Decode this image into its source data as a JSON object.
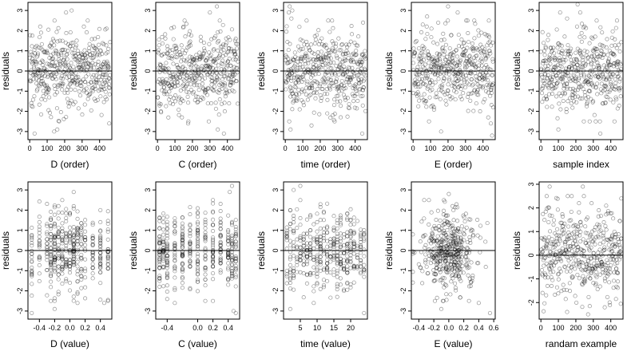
{
  "figure": {
    "background": "#ffffff",
    "point_color": "#000000"
  },
  "chart_data": [
    {
      "type": "scatter",
      "xlabel": "D (order)",
      "ylabel": "residuals",
      "xlim": [
        -10,
        470
      ],
      "ylim": [
        -3.4,
        3.4
      ],
      "xticks": [
        0,
        100,
        200,
        300,
        400
      ],
      "yticks": [
        -3,
        -2,
        -1,
        0,
        1,
        2,
        3
      ],
      "hline": 0,
      "x_pattern": "order",
      "n": 450,
      "grid": false,
      "x": [
        28,
        60,
        65,
        140,
        158,
        208,
        230,
        240,
        310,
        440,
        455
      ],
      "y": [
        -3.1,
        2.2,
        1.9,
        -3.0,
        -2.9,
        2.9,
        -1.6,
        3.0,
        2.2,
        2.1,
        -2.6
      ]
    },
    {
      "type": "scatter",
      "xlabel": "C (order)",
      "ylabel": "residuals",
      "xlim": [
        -10,
        470
      ],
      "ylim": [
        -3.4,
        3.4
      ],
      "xticks": [
        0,
        100,
        200,
        300,
        400
      ],
      "yticks": [
        -3,
        -2,
        -1,
        0,
        1,
        2,
        3
      ],
      "hline": 0,
      "x_pattern": "order",
      "n": 450,
      "grid": false,
      "x": [
        20,
        140,
        175,
        300,
        340,
        345,
        380,
        385
      ],
      "y": [
        -2.0,
        -2.3,
        -2.6,
        2.9,
        3.2,
        -2.9,
        -3.1,
        -2.0
      ]
    },
    {
      "type": "scatter",
      "xlabel": "time (order)",
      "ylabel": "residuals",
      "xlim": [
        -10,
        470
      ],
      "ylim": [
        -3.4,
        3.4
      ],
      "xticks": [
        0,
        100,
        200,
        300,
        400
      ],
      "yticks": [
        -3,
        -2,
        -1,
        0,
        1,
        2,
        3
      ],
      "hline": 0,
      "x_pattern": "order",
      "n": 450,
      "grid": false,
      "x": [
        20,
        25,
        30,
        35,
        40,
        150,
        240,
        440,
        445
      ],
      "y": [
        2.9,
        3.2,
        -2.9,
        2.6,
        3.0,
        -2.7,
        -2.1,
        -3.1,
        2.4
      ]
    },
    {
      "type": "scatter",
      "xlabel": "E (order)",
      "ylabel": "residuals",
      "xlim": [
        -10,
        470
      ],
      "ylim": [
        -3.4,
        3.4
      ],
      "xticks": [
        0,
        100,
        200,
        300,
        400
      ],
      "yticks": [
        -3,
        -2,
        -1,
        0,
        1,
        2,
        3
      ],
      "hline": 0,
      "x_pattern": "order",
      "n": 450,
      "grid": false,
      "x": [
        80,
        105,
        160,
        200,
        255,
        350,
        430,
        445,
        452
      ],
      "y": [
        2.7,
        2.1,
        -3.0,
        3.2,
        2.9,
        2.5,
        -2.3,
        -2.6,
        -3.2
      ]
    },
    {
      "type": "scatter",
      "xlabel": "sample index",
      "ylabel": "residuals",
      "xlim": [
        -10,
        470
      ],
      "ylim": [
        -3.4,
        3.4
      ],
      "xticks": [
        0,
        100,
        200,
        300,
        400
      ],
      "yticks": [
        -3,
        -2,
        -1,
        0,
        1,
        2,
        3
      ],
      "hline": 0,
      "x_pattern": "order",
      "n": 450,
      "grid": false,
      "x": [
        100,
        110,
        150,
        210,
        225,
        250,
        340
      ],
      "y": [
        -2.9,
        2.9,
        2.6,
        3.3,
        2.9,
        2.2,
        -3.1
      ]
    },
    {
      "type": "scatter",
      "xlabel": "D (value)",
      "ylabel": "residuals",
      "xlim": [
        -0.55,
        0.55
      ],
      "ylim": [
        -3.4,
        3.4
      ],
      "xticks": [
        -0.4,
        -0.2,
        0.0,
        0.2,
        0.4
      ],
      "xtick_decimals": 1,
      "yticks": [
        -3,
        -2,
        -1,
        0,
        1,
        2,
        3
      ],
      "hline": 0,
      "x_pattern": "levels",
      "x_levels": [
        -0.5,
        -0.4,
        -0.3,
        -0.25,
        -0.2,
        -0.15,
        -0.1,
        -0.05,
        0.0,
        0.05,
        0.1,
        0.15,
        0.2,
        0.3,
        0.4,
        0.5
      ],
      "n": 420,
      "grid": false,
      "x": [
        -0.5,
        -0.2,
        -0.15,
        0.05,
        0.1,
        0.4,
        0.45
      ],
      "y": [
        -3.1,
        -2.9,
        2.2,
        2.9,
        -2.6,
        2.0,
        -2.6
      ]
    },
    {
      "type": "scatter",
      "xlabel": "C (value)",
      "ylabel": "residuals",
      "xlim": [
        -0.55,
        0.55
      ],
      "ylim": [
        -3.4,
        3.4
      ],
      "xticks": [
        -0.4,
        0.0,
        0.2,
        0.4
      ],
      "xtick_decimals": 1,
      "yticks": [
        -3,
        -2,
        -1,
        0,
        1,
        2,
        3
      ],
      "hline": 0,
      "x_pattern": "levels",
      "x_levels": [
        -0.5,
        -0.45,
        -0.4,
        -0.3,
        -0.2,
        -0.1,
        0.0,
        0.1,
        0.2,
        0.3,
        0.4,
        0.45,
        0.5
      ],
      "n": 420,
      "grid": false,
      "x": [
        -0.3,
        0.45,
        0.47,
        0.5,
        0.42
      ],
      "y": [
        -2.6,
        3.2,
        -3.0,
        -3.1,
        2.9
      ]
    },
    {
      "type": "scatter",
      "xlabel": "time (value)",
      "ylabel": "residuals",
      "xlim": [
        0,
        25
      ],
      "ylim": [
        -3.4,
        3.4
      ],
      "xticks": [
        5,
        10,
        15,
        20
      ],
      "yticks": [
        -3,
        -2,
        -1,
        0,
        1,
        2,
        3
      ],
      "hline": 0,
      "x_pattern": "levels",
      "x_levels": [
        1,
        2,
        3,
        4,
        5,
        6,
        7,
        8,
        9,
        10,
        11,
        12,
        13,
        14,
        15,
        16,
        17,
        18,
        19,
        20,
        21,
        22,
        23,
        24
      ],
      "n": 420,
      "grid": false,
      "x": [
        2,
        3,
        5,
        9,
        16,
        24
      ],
      "y": [
        -2.9,
        3.0,
        3.2,
        -2.6,
        -2.3,
        -3.1
      ]
    },
    {
      "type": "scatter",
      "xlabel": "E (value)",
      "ylabel": "residuals",
      "xlim": [
        -0.5,
        0.62
      ],
      "ylim": [
        -3.4,
        3.4
      ],
      "xticks": [
        -0.4,
        -0.2,
        0.0,
        0.2,
        0.4,
        0.6
      ],
      "xtick_decimals": 1,
      "yticks": [
        -3,
        -2,
        -1,
        0,
        1,
        2,
        3
      ],
      "hline": 0,
      "x_pattern": "cluster",
      "x_center": 0.0,
      "x_spread": 0.18,
      "n": 430,
      "grid": false,
      "x": [
        -0.1,
        0.0,
        0.05,
        0.4,
        0.55
      ],
      "y": [
        -2.9,
        2.8,
        2.2,
        -2.6,
        -3.1
      ]
    },
    {
      "type": "scatter",
      "xlabel": "randam example",
      "ylabel": "residuals",
      "xlim": [
        -10,
        470
      ],
      "ylim": [
        -2.7,
        3.1
      ],
      "xticks": [
        0,
        100,
        200,
        300,
        400
      ],
      "yticks": [
        -2,
        -1,
        0,
        1,
        2,
        3
      ],
      "hline": 0,
      "x_pattern": "order",
      "n": 450,
      "grid": false,
      "x": [
        50,
        150,
        240,
        270,
        290,
        460
      ],
      "y": [
        2.9,
        -2.4,
        2.9,
        -2.5,
        2.2,
        2.4
      ]
    }
  ]
}
